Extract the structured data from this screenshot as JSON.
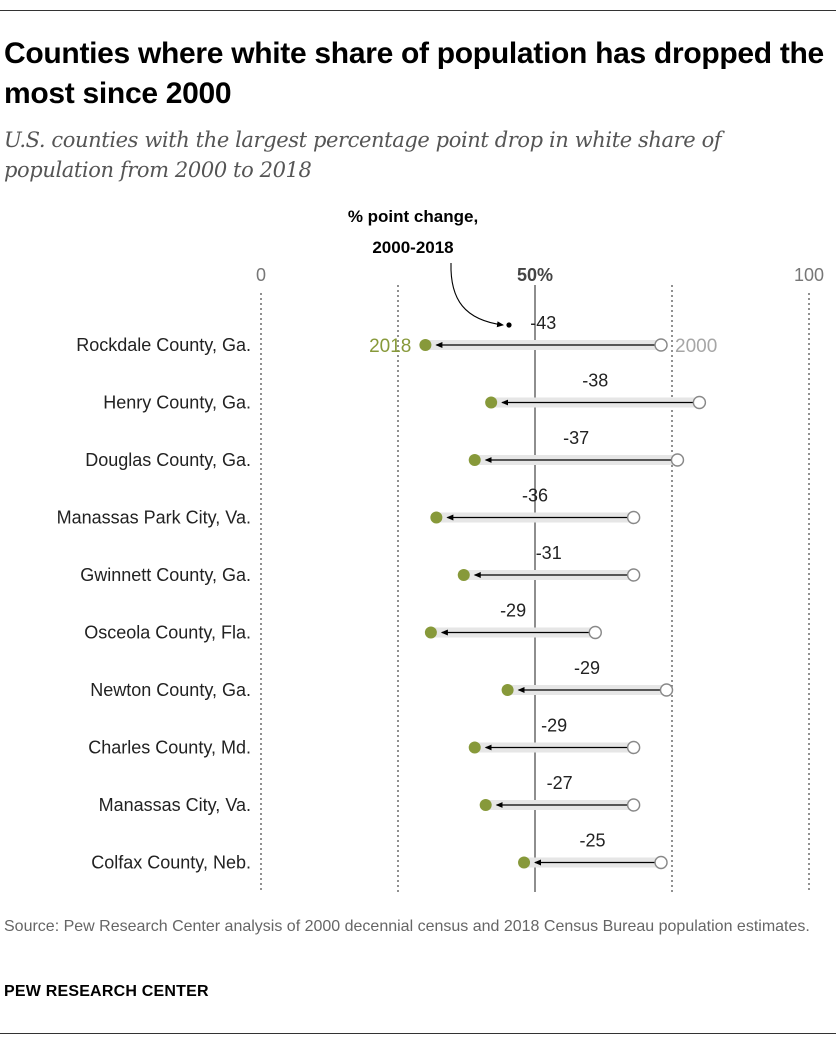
{
  "title": "Counties where white share of population has dropped the most since 2000",
  "subtitle": "U.S. counties with the largest percentage point drop in white share of population from 2000 to 2018",
  "source": "Source: Pew Research Center analysis of 2000 decennial census and 2018 Census Bureau population estimates.",
  "brand": "PEW RESEARCH CENTER",
  "colors": {
    "y2018": "#87993a",
    "y2000": "#ffffff",
    "label2018": "#87993a",
    "label2000": "#a6a6a6",
    "bar": "#e6e6e6",
    "grid": "#555555"
  },
  "chart_data": {
    "type": "dot",
    "annotation_label": [
      "% point change,",
      "2000-2018"
    ],
    "axis_ticks": [
      {
        "value": 0,
        "label": "0",
        "bold": false
      },
      {
        "value": 25,
        "label": "",
        "bold": false
      },
      {
        "value": 50,
        "label": "50%",
        "bold": true
      },
      {
        "value": 75,
        "label": "",
        "bold": false
      },
      {
        "value": 100,
        "label": "100",
        "bold": false
      }
    ],
    "xlim": [
      0,
      100
    ],
    "series_labels": {
      "y2018": "2018",
      "y2000": "2000"
    },
    "rows": [
      {
        "county": "Rockdale County, Ga.",
        "y2000": 73,
        "y2018": 30,
        "change": "-43"
      },
      {
        "county": "Henry County, Ga.",
        "y2000": 80,
        "y2018": 42,
        "change": "-38"
      },
      {
        "county": "Douglas County, Ga.",
        "y2000": 76,
        "y2018": 39,
        "change": "-37"
      },
      {
        "county": "Manassas Park City, Va.",
        "y2000": 68,
        "y2018": 32,
        "change": "-36"
      },
      {
        "county": "Gwinnett County, Ga.",
        "y2000": 68,
        "y2018": 37,
        "change": "-31"
      },
      {
        "county": "Osceola County, Fla.",
        "y2000": 61,
        "y2018": 31,
        "change": "-29"
      },
      {
        "county": "Newton County, Ga.",
        "y2000": 74,
        "y2018": 45,
        "change": "-29"
      },
      {
        "county": "Charles County, Md.",
        "y2000": 68,
        "y2018": 39,
        "change": "-29"
      },
      {
        "county": "Manassas City, Va.",
        "y2000": 68,
        "y2018": 41,
        "change": "-27"
      },
      {
        "county": "Colfax County, Neb.",
        "y2000": 73,
        "y2018": 48,
        "change": "-25"
      }
    ]
  }
}
